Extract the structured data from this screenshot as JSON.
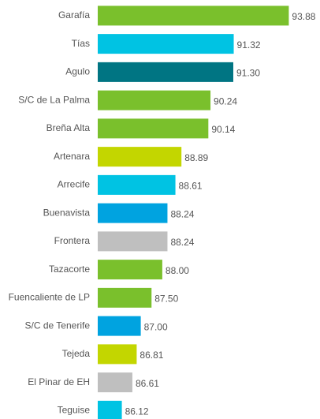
{
  "chart_data": {
    "type": "bar",
    "orientation": "horizontal",
    "categories": [
      "Garafía",
      "Tías",
      "Agulo",
      "S/C de La Palma",
      "Breña Alta",
      "Artenara",
      "Arrecife",
      "Buenavista",
      "Frontera",
      "Tazacorte",
      "Fuencaliente de LP",
      "S/C de Tenerife",
      "Tejeda",
      "El Pinar de EH",
      "Teguise"
    ],
    "values": [
      93.88,
      91.32,
      91.3,
      90.24,
      90.14,
      88.89,
      88.61,
      88.24,
      88.24,
      88.0,
      87.5,
      87.0,
      86.81,
      86.61,
      86.12
    ],
    "value_labels": [
      "93.88",
      "91.32",
      "91.30",
      "90.24",
      "90.14",
      "88.89",
      "88.61",
      "88.24",
      "88.24",
      "88.00",
      "87.50",
      "87.00",
      "86.81",
      "86.61",
      "86.12"
    ],
    "colors": [
      "#7ac02c",
      "#00c3e3",
      "#007583",
      "#7ac02c",
      "#7ac02c",
      "#c3d600",
      "#00c3e3",
      "#00a3e0",
      "#bfbfbf",
      "#7ac02c",
      "#7ac02c",
      "#00a3e0",
      "#c3d600",
      "#bfbfbf",
      "#00c3e3"
    ],
    "xlim": [
      85,
      95
    ]
  }
}
